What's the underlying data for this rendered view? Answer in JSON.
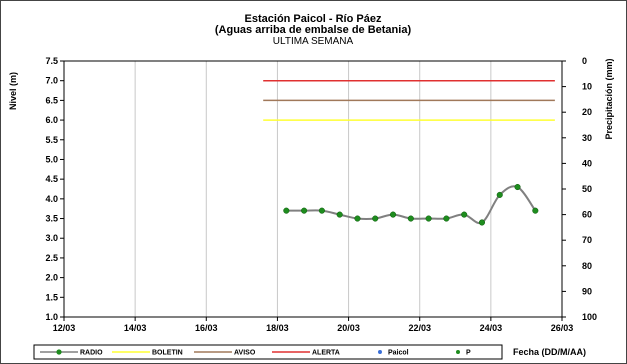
{
  "chart_data": {
    "type": "line",
    "title_lines": [
      "Estación Paicol  - Río Páez",
      "(Aguas arriba de embalse de Betania)",
      "ULTIMA SEMANA"
    ],
    "ylabel": "Nivel (m)",
    "y2label": "Precipitación (mm)",
    "xlabel": "Fecha  (DD/M/AA)",
    "x_ticks": [
      "12/03",
      "14/03",
      "16/03",
      "18/03",
      "20/03",
      "22/03",
      "24/03",
      "26/03"
    ],
    "x_range": [
      0,
      14
    ],
    "x_tick_step": 2,
    "ylim": [
      1.0,
      7.5
    ],
    "y_ticks": [
      "1.0",
      "1.5",
      "2.0",
      "2.5",
      "3.0",
      "3.5",
      "4.0",
      "4.5",
      "5.0",
      "5.5",
      "6.0",
      "6.5",
      "7.0",
      "7.5"
    ],
    "y2lim": [
      0,
      100
    ],
    "y2_ticks": [
      "0",
      "10",
      "20",
      "30",
      "40",
      "50",
      "60",
      "70",
      "80",
      "90",
      "100"
    ],
    "grid": "vertical",
    "legend_position": "bottom",
    "thresholds": [
      {
        "name": "BOLETIN",
        "value": 6.0,
        "x_start": 5.6,
        "x_end": 13.8,
        "color": "#ffff33"
      },
      {
        "name": "AVISO",
        "value": 6.5,
        "x_start": 5.6,
        "x_end": 13.8,
        "color": "#a0785a"
      },
      {
        "name": "ALERTA",
        "value": 7.0,
        "x_start": 5.6,
        "x_end": 13.8,
        "color": "#e03030"
      }
    ],
    "series": [
      {
        "name": "RADIO",
        "color": "#808080",
        "marker_color": "#1e8c1e",
        "x": [
          6.25,
          6.75,
          7.25,
          7.75,
          8.25,
          8.75,
          9.25,
          9.75,
          10.25,
          10.75,
          11.25,
          11.75,
          12.25,
          12.75,
          13.25
        ],
        "values": [
          3.7,
          3.7,
          3.7,
          3.6,
          3.5,
          3.5,
          3.6,
          3.5,
          3.5,
          3.5,
          3.6,
          3.4,
          4.1,
          4.3,
          3.7
        ]
      }
    ],
    "legend": [
      {
        "name": "RADIO",
        "kind": "line-marker",
        "line_color": "#808080",
        "marker_color": "#1e8c1e"
      },
      {
        "name": "BOLETIN",
        "kind": "line",
        "line_color": "#ffff33"
      },
      {
        "name": "AVISO",
        "kind": "line",
        "line_color": "#a0785a"
      },
      {
        "name": "ALERTA",
        "kind": "line",
        "line_color": "#e03030"
      },
      {
        "name": "Paicol",
        "kind": "marker",
        "marker_color": "#3a6fd8"
      },
      {
        "name": "P",
        "kind": "marker",
        "marker_color": "#1e8c1e"
      }
    ]
  }
}
